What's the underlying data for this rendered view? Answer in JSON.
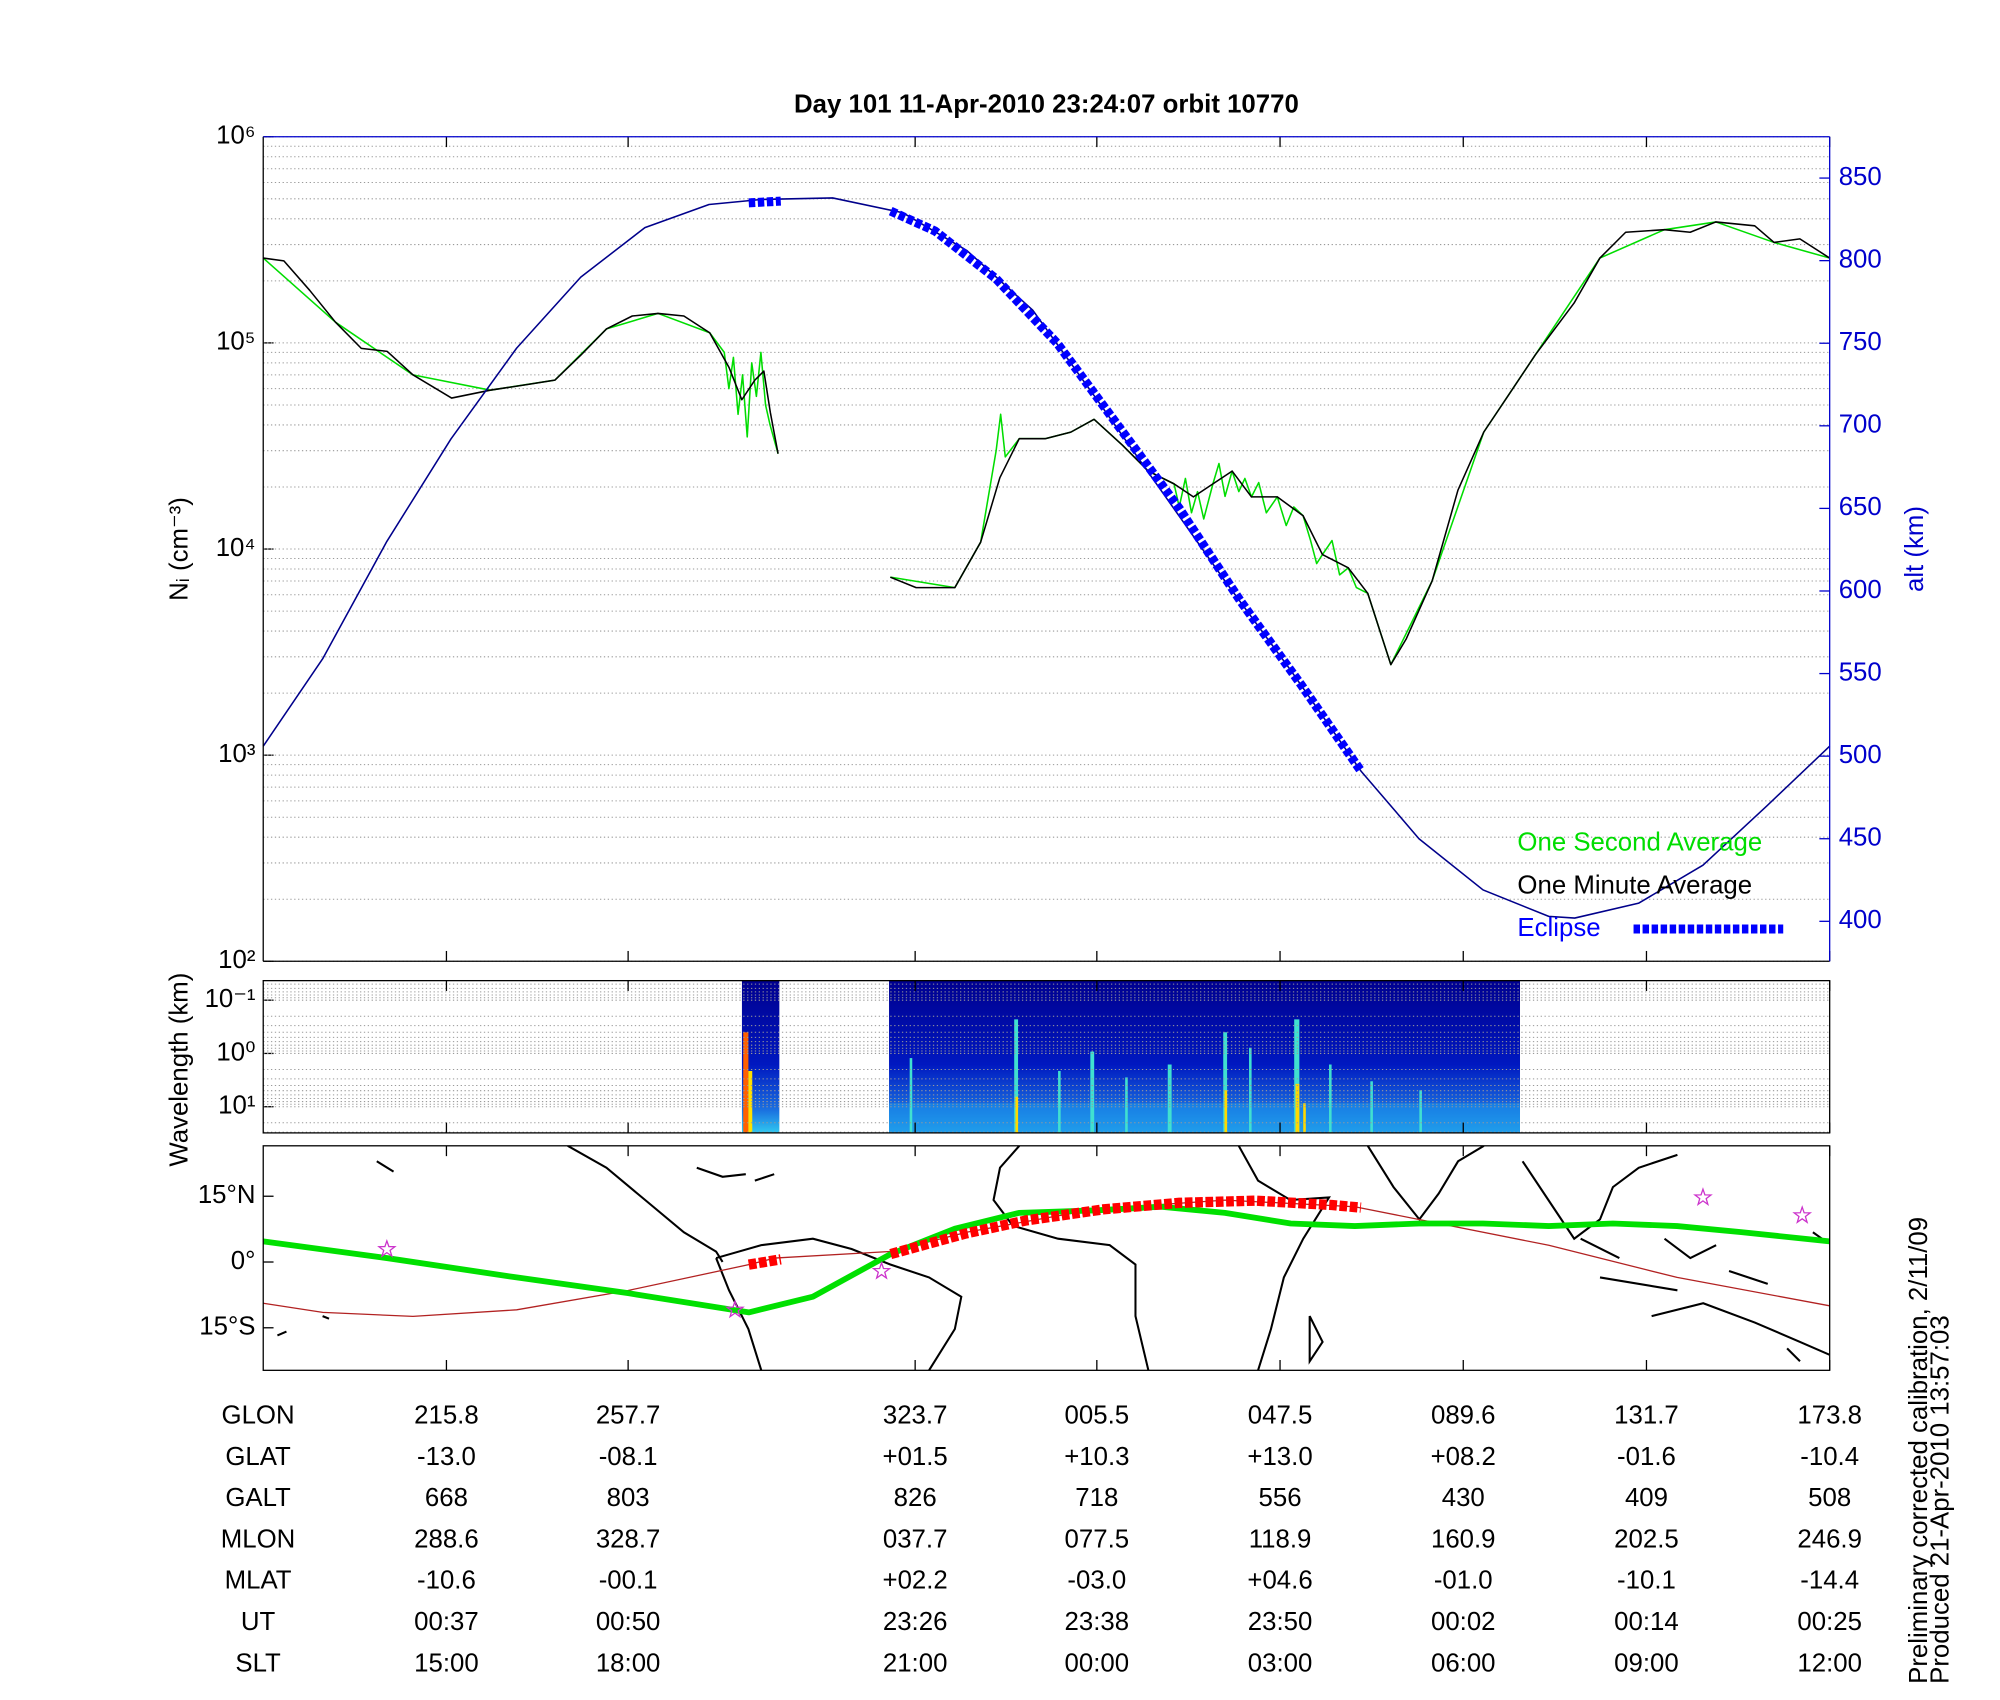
{
  "chart_data": [
    {
      "type": "line",
      "title": "Day 101  11-Apr-2010 23:24:07   orbit 10770",
      "ylabel": "Nᵢ (cm⁻³)",
      "y2label": "alt (km)",
      "xlim": [
        0,
        102.6
      ],
      "xticks": [
        12,
        23.9,
        42.7,
        54.6,
        66.6,
        78.6,
        90.6,
        102.6
      ],
      "ylim": [
        100,
        1000000
      ],
      "log_y": true,
      "yticks": [
        {
          "value": 100,
          "label": "10²"
        },
        {
          "value": 1000,
          "label": "10³"
        },
        {
          "value": 10000,
          "label": "10⁴"
        },
        {
          "value": 100000,
          "label": "10⁵"
        },
        {
          "value": 1000000,
          "label": "10⁶"
        }
      ],
      "y2lim": [
        375.8,
        875
      ],
      "y2ticks": [
        400,
        450,
        500,
        550,
        600,
        650,
        700,
        750,
        800,
        850
      ],
      "grid": true,
      "minor_grid": true,
      "legend": "lower right",
      "series": [
        {
          "name": "One Second Average",
          "color": "#00dd00",
          "x": [
            0,
            4.73,
            9.8,
            14.87,
            19.1,
            22.48,
            25.86,
            29.24,
            30.2,
            30.5,
            30.8,
            31.1,
            31.4,
            31.7,
            32.0,
            32.3,
            32.6,
            32.9,
            33.2,
            33.72,
            37,
            41.07,
            45.3,
            46.99,
            48.0,
            48.3,
            48.6,
            49.52,
            51.21,
            52.9,
            54.42,
            56.28,
            57.97,
            59.66,
            60.0,
            60.4,
            60.8,
            61.2,
            61.6,
            62.2,
            62.6,
            63.0,
            63.46,
            63.9,
            64.3,
            64.73,
            65.2,
            65.7,
            66.42,
            67.0,
            67.5,
            68.11,
            68.6,
            69.0,
            69.38,
            70.0,
            70.5,
            71.07,
            71.6,
            72.34,
            73.86,
            76.56,
            79.94,
            83.32,
            87.55,
            91.77,
            95.15,
            98.96,
            102.6
          ],
          "values": [
            258000,
            126000,
            70000,
            59000,
            66000,
            117000,
            139000,
            112000,
            90000,
            60000,
            85000,
            45000,
            70000,
            35000,
            80000,
            55000,
            90000,
            50000,
            40000,
            29000,
            null,
            7300,
            6500,
            10800,
            30000,
            45000,
            28000,
            34300,
            34300,
            36900,
            42600,
            31900,
            23900,
            20700,
            16000,
            22000,
            15000,
            19000,
            14000,
            20700,
            26000,
            18000,
            23900,
            19000,
            22000,
            17900,
            21000,
            15000,
            17900,
            13000,
            16000,
            14500,
            11000,
            8500,
            9400,
            11000,
            7500,
            8100,
            6500,
            6100,
            2750,
            7000,
            36900,
            87500,
            258000,
            354000,
            386000,
            307000,
            258000
          ]
        },
        {
          "name": "One Minute Average",
          "color": "#000000",
          "x": [
            0,
            1.35,
            3.04,
            4.73,
            6.42,
            8.11,
            9.8,
            12.34,
            14.87,
            17.41,
            19.1,
            20.79,
            22.48,
            24.17,
            25.86,
            27.55,
            29.24,
            30.51,
            31.35,
            32.2,
            32.79,
            33.21,
            33.72,
            37,
            41.07,
            42.76,
            45.3,
            46.99,
            48.25,
            49.52,
            51.21,
            52.9,
            54.42,
            56.28,
            57.97,
            59.66,
            60.93,
            62.2,
            63.46,
            64.73,
            66.42,
            68.11,
            69.38,
            71.07,
            72.34,
            73.86,
            74.87,
            76.56,
            78.25,
            79.94,
            81.63,
            83.32,
            85.86,
            87.55,
            89.24,
            91.77,
            93.46,
            95.15,
            97.69,
            98.96,
            100.65,
            102.6
          ],
          "values": [
            258000,
            250000,
            180000,
            126000,
            94000,
            91000,
            70000,
            54000,
            59000,
            63000,
            66000,
            87000,
            117000,
            135000,
            139000,
            135000,
            112000,
            76000,
            53000,
            66000,
            73000,
            46000,
            29000,
            null,
            7300,
            6500,
            6500,
            10800,
            22200,
            34300,
            34300,
            36900,
            42600,
            31900,
            23900,
            20700,
            17900,
            20700,
            23900,
            17900,
            17900,
            14500,
            9400,
            8100,
            6100,
            2750,
            3670,
            7000,
            19300,
            36900,
            56800,
            87500,
            156000,
            258000,
            344000,
            354000,
            344000,
            386000,
            370000,
            307000,
            320000,
            258000
          ]
        },
        {
          "color": "#00008b",
          "axis": "y2",
          "x": [
            0,
            3.9,
            8.1,
            12.3,
            16.6,
            20.8,
            25.0,
            29.2,
            32.6,
            37.3,
            41.9,
            46.1,
            50.4,
            54.6,
            58.8,
            63.0,
            67.3,
            71.9,
            75.7,
            79.9,
            84.2,
            85.9,
            90.1,
            94.3,
            98.5,
            102.6
          ],
          "values": [
            506,
            559,
            630,
            692,
            747,
            790,
            820,
            834,
            837,
            838,
            829,
            806,
            770,
            716,
            661,
            606,
            552,
            491,
            450,
            419,
            403,
            402,
            411,
            434,
            470,
            506
          ]
        },
        {
          "name": "Eclipse",
          "color": "#0000ff",
          "axis": "y2",
          "dashed": true,
          "x": [
            31.8,
            33.9,
            37,
            41.1,
            44,
            48,
            52,
            56,
            60,
            64,
            68,
            71.9
          ],
          "values": [
            835,
            836,
            null,
            830,
            818,
            789,
            750,
            700,
            650,
            594,
            543,
            491
          ]
        }
      ]
    },
    {
      "type": "spectrogram",
      "ylabel": "Wavelength (km)",
      "xlim": [
        0,
        102.6
      ],
      "xticks": [
        12,
        23.9,
        42.7,
        54.6,
        66.6,
        78.6,
        90.6,
        102.6
      ],
      "ylim": [
        0.043,
        31
      ],
      "log_y": true,
      "y_inverted": true,
      "yticks": [
        {
          "value": 0.1,
          "label": "10⁻¹"
        },
        {
          "value": 1,
          "label": "10⁰"
        },
        {
          "value": 10,
          "label": "10¹"
        }
      ],
      "grid": true,
      "minor_grid": true
    },
    {
      "type": "map",
      "xlim": [
        0,
        102.6
      ],
      "xticks": [
        12,
        23.9,
        42.7,
        54.6,
        66.6,
        78.6,
        90.6,
        102.6
      ],
      "ylim": [
        -24.7,
        26.5
      ],
      "yticks": [
        {
          "value": 15,
          "label": "15°N"
        },
        {
          "value": 0,
          "label": "0°"
        },
        {
          "value": -15,
          "label": "15°S"
        }
      ],
      "series": [
        {
          "color": "#b22222",
          "x": [
            0,
            3.9,
            9.8,
            16.6,
            23.9,
            31.8,
            33.5,
            41.1,
            46.1,
            54.6,
            63.0,
            71.5,
            75.7,
            84.2,
            92.6,
            102.6
          ],
          "values": [
            -9.4,
            -11.5,
            -12.4,
            -10.9,
            -6.5,
            -0.6,
            0.9,
            2.4,
            6.8,
            12.1,
            14.1,
            12.6,
            9.7,
            3.8,
            -3.5,
            -10.0
          ]
        },
        {
          "color": "#00e000",
          "thick": true,
          "x": [
            0,
            8.1,
            16.6,
            23.9,
            31.8,
            36.0,
            41.1,
            45.3,
            49.5,
            54.6,
            58.8,
            63.0,
            67.3,
            71.5,
            75.7,
            79.9,
            84.2,
            88.4,
            92.6,
            96.8,
            102.6
          ],
          "values": [
            4.7,
            0.9,
            -3.5,
            -7.1,
            -11.5,
            -7.9,
            1.8,
            7.6,
            11.2,
            11.8,
            12.6,
            11.2,
            8.8,
            8.2,
            8.8,
            8.8,
            8.2,
            8.8,
            8.2,
            6.8,
            4.7
          ]
        },
        {
          "color": "#ff0000",
          "dashed": true,
          "x": [
            31.8,
            33.9,
            37,
            41.1,
            46,
            50,
            55,
            60,
            65,
            70,
            71.9
          ],
          "values": [
            -0.6,
            0.6,
            null,
            1.8,
            6.5,
            9.5,
            12,
            13.5,
            14,
            13,
            12.4
          ]
        },
        {
          "color": "#cc33cc",
          "marker": "star",
          "x": [
            8.1,
            30.9,
            40.5,
            94.3,
            100.8
          ],
          "values": [
            2.9,
            -10.9,
            -2.1,
            14.7,
            10.6
          ]
        }
      ]
    }
  ],
  "table": {
    "rows": [
      [
        "GLON",
        "215.8",
        "257.7",
        "323.7",
        "005.5",
        "047.5",
        "089.6",
        "131.7",
        "173.8"
      ],
      [
        "GLAT",
        "-13.0",
        "-08.1",
        "+01.5",
        "+10.3",
        "+13.0",
        "+08.2",
        "-01.6",
        "-10.4"
      ],
      [
        "GALT",
        "668",
        "803",
        "826",
        "718",
        "556",
        "430",
        "409",
        "508"
      ],
      [
        "MLON",
        "288.6",
        "328.7",
        "037.7",
        "077.5",
        "118.9",
        "160.9",
        "202.5",
        "246.9"
      ],
      [
        "MLAT",
        "-10.6",
        "-00.1",
        "+02.2",
        "-03.0",
        "+04.6",
        "-01.0",
        "-10.1",
        "-14.4"
      ],
      [
        "UT",
        "00:37",
        "00:50",
        "23:26",
        "23:38",
        "23:50",
        "00:02",
        "00:14",
        "00:25"
      ],
      [
        "SLT",
        "15:00",
        "18:00",
        "21:00",
        "00:00",
        "03:00",
        "06:00",
        "09:00",
        "12:00"
      ]
    ]
  },
  "notes": [
    "Preliminary corrected calibration, 2/11/09",
    "Produced 21-Apr-2010 13:57:03"
  ]
}
